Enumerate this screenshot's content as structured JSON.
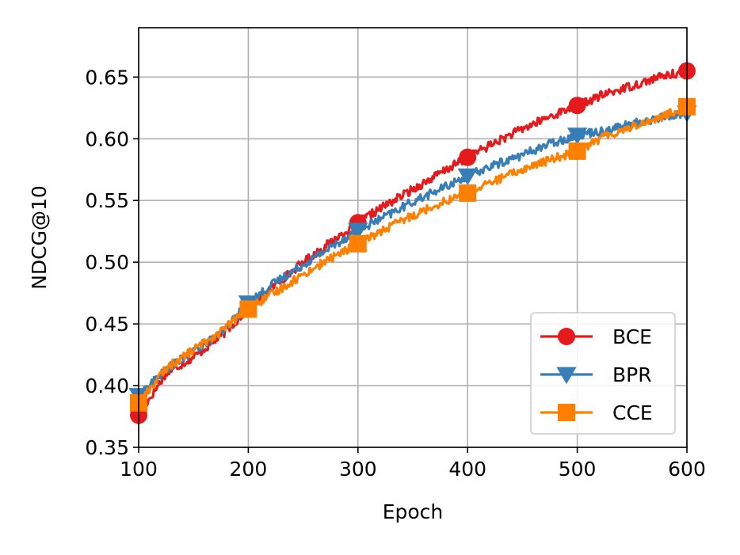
{
  "chart_data": {
    "type": "line",
    "title": "",
    "xlabel": "Epoch",
    "ylabel": "NDCG@10",
    "xlim": [
      100,
      600
    ],
    "ylim": [
      0.35,
      0.69
    ],
    "xticks": [
      100,
      200,
      300,
      400,
      500,
      600
    ],
    "xtick_labels": [
      "100",
      "200",
      "300",
      "400",
      "500",
      "600"
    ],
    "yticks": [
      0.35,
      0.4,
      0.45,
      0.5,
      0.55,
      0.6,
      0.65
    ],
    "ytick_labels": [
      "0.35",
      "0.40",
      "0.45",
      "0.50",
      "0.55",
      "0.60",
      "0.65"
    ],
    "grid": true,
    "legend_position": "lower-right",
    "series": [
      {
        "name": "BCE",
        "color": "#e41a1c",
        "marker": "circle",
        "x": [
          100,
          125,
          150,
          175,
          200,
          225,
          250,
          275,
          300,
          325,
          350,
          375,
          400,
          425,
          450,
          475,
          500,
          525,
          550,
          575,
          600
        ],
        "values": [
          0.376,
          0.41,
          0.423,
          0.44,
          0.462,
          0.482,
          0.5,
          0.516,
          0.532,
          0.546,
          0.559,
          0.572,
          0.585,
          0.597,
          0.608,
          0.618,
          0.627,
          0.636,
          0.643,
          0.65,
          0.655
        ]
      },
      {
        "name": "BPR",
        "color": "#377eb8",
        "marker": "triangle-down",
        "x": [
          100,
          125,
          150,
          175,
          200,
          225,
          250,
          275,
          300,
          325,
          350,
          375,
          400,
          425,
          450,
          475,
          500,
          525,
          550,
          575,
          600
        ],
        "values": [
          0.392,
          0.413,
          0.428,
          0.442,
          0.467,
          0.484,
          0.498,
          0.512,
          0.526,
          0.537,
          0.549,
          0.559,
          0.57,
          0.579,
          0.587,
          0.596,
          0.603,
          0.607,
          0.612,
          0.617,
          0.621
        ]
      },
      {
        "name": "CCE",
        "color": "#ff7f00",
        "marker": "square",
        "x": [
          100,
          125,
          150,
          175,
          200,
          225,
          250,
          275,
          300,
          325,
          350,
          375,
          400,
          425,
          450,
          475,
          500,
          525,
          550,
          575,
          600
        ],
        "values": [
          0.386,
          0.414,
          0.429,
          0.444,
          0.462,
          0.476,
          0.49,
          0.503,
          0.515,
          0.527,
          0.538,
          0.548,
          0.556,
          0.566,
          0.575,
          0.583,
          0.59,
          0.602,
          0.61,
          0.617,
          0.626
        ]
      }
    ],
    "markers_at_x": [
      100,
      200,
      300,
      400,
      500,
      600
    ]
  }
}
